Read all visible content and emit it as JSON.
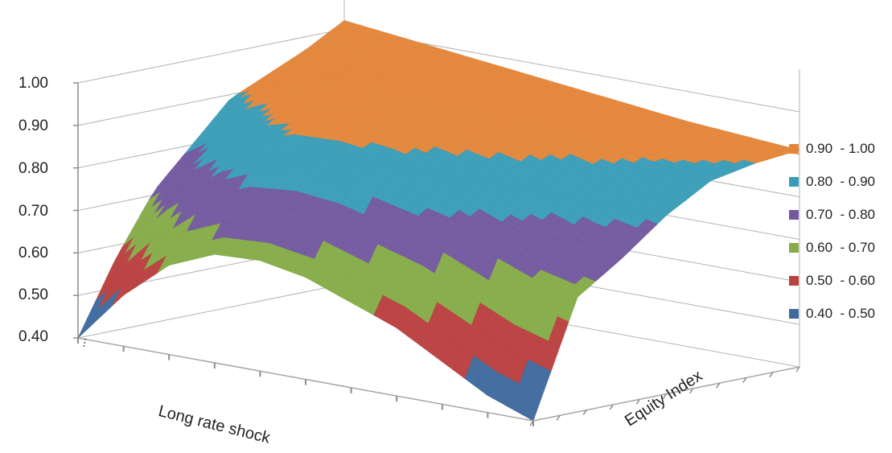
{
  "chart_data": {
    "type": "surface",
    "xlabel": "Long rate shock",
    "ylabel": "Equity Index",
    "zlim": [
      0.4,
      1.0
    ],
    "z_ticks": [
      "0.40",
      "0.50",
      "0.60",
      "0.70",
      "0.80",
      "0.90",
      "1.00"
    ],
    "x_tick_label": "...",
    "legend": [
      {
        "label": "0.90  - 1.00",
        "color": "#E4863A"
      },
      {
        "label": "0.80  - 0.90",
        "color": "#3A9DB7"
      },
      {
        "label": "0.70  - 0.80",
        "color": "#7358A0"
      },
      {
        "label": "0.60  - 0.70",
        "color": "#86AC49"
      },
      {
        "label": "0.50  - 0.60",
        "color": "#B94140"
      },
      {
        "label": "0.40  - 0.50",
        "color": "#3F6A9E"
      }
    ],
    "surface_edges": {
      "front_edge_values": [
        0.4,
        0.52,
        0.61,
        0.655,
        0.66,
        0.64,
        0.6,
        0.56,
        0.5,
        0.44,
        0.4
      ],
      "left_edge_values": [
        0.4,
        0.57,
        0.71,
        0.8,
        0.89,
        0.93,
        0.97,
        1.02
      ],
      "right_edge_values": [
        0.4,
        0.67,
        0.74,
        0.82,
        0.88,
        0.9,
        0.91
      ],
      "back_edge_values": [
        1.02,
        0.99,
        0.96,
        0.93,
        0.91
      ]
    }
  }
}
